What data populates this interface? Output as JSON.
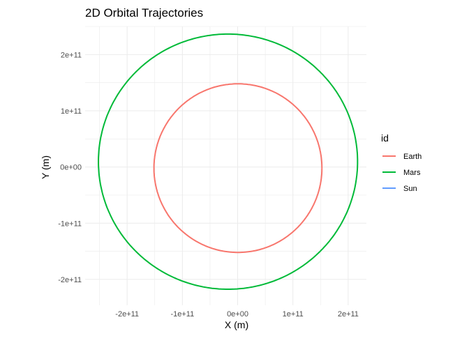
{
  "chart_data": {
    "type": "line",
    "title": "2D Orbital Trajectories",
    "xlabel": "X (m)",
    "ylabel": "Y (m)",
    "xlim": [
      -276000000000.0,
      233000000000.0
    ],
    "ylim": [
      -246000000000.0,
      250000000000.0
    ],
    "x_ticks": [
      -200000000000.0,
      -100000000000.0,
      0,
      100000000000.0,
      200000000000.0
    ],
    "x_tick_labels": [
      "-2e+11",
      "-1e+11",
      "0e+00",
      "1e+11",
      "2e+11"
    ],
    "y_ticks": [
      200000000000.0,
      100000000000.0,
      0,
      -100000000000.0,
      -200000000000.0
    ],
    "y_tick_labels": [
      "2e+11",
      "1e+11",
      "0e+00",
      "-1e+11",
      "-2e+11"
    ],
    "grid": true,
    "legend": {
      "title": "id",
      "placement": "right"
    },
    "series": [
      {
        "name": "Earth",
        "color": "#F8766D",
        "shape": "ellipse",
        "center": [
          500000000.0,
          -2000000000.0
        ],
        "radii": [
          152000000000.0,
          150000000000.0
        ]
      },
      {
        "name": "Mars",
        "color": "#00BA38",
        "shape": "ellipse",
        "center": [
          -17500000000.0,
          9500000000.0
        ],
        "radii": [
          234500000000.0,
          227000000000.0
        ]
      },
      {
        "name": "Sun",
        "color": "#619CFF",
        "shape": "point",
        "center": [
          0,
          0
        ],
        "radii": [
          0,
          0
        ]
      }
    ]
  }
}
